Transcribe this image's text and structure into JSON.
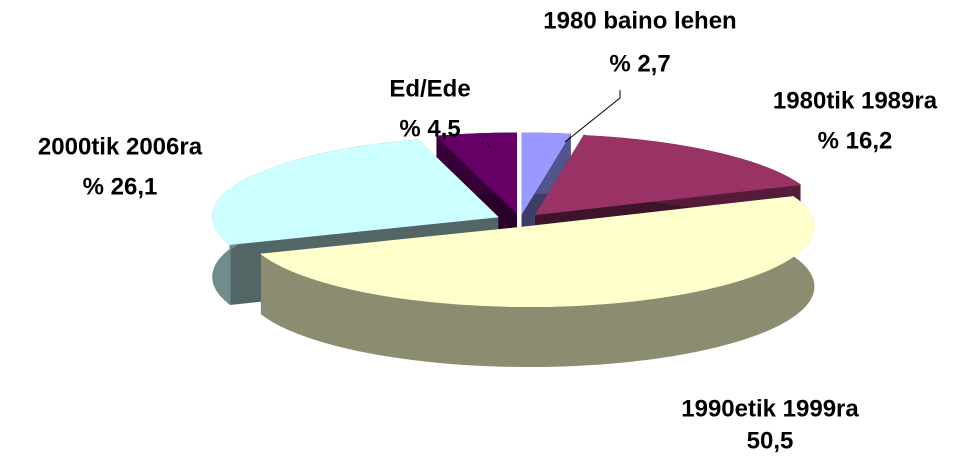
{
  "chart_data": {
    "type": "pie3d",
    "categories": [
      "1980 baino lehen",
      "1980tik 1989ra",
      "1990etik 1999ra",
      "2000tik 2006ra",
      "Ed/Ede"
    ],
    "values": [
      2.7,
      16.2,
      50.5,
      26.1,
      4.5
    ],
    "value_labels": [
      "% 2,7",
      "% 16,2",
      "50,5",
      "% 26,1",
      "% 4,5"
    ],
    "colors": [
      "#9999ff",
      "#993366",
      "#ffffcc",
      "#ccffff",
      "#660066"
    ]
  }
}
